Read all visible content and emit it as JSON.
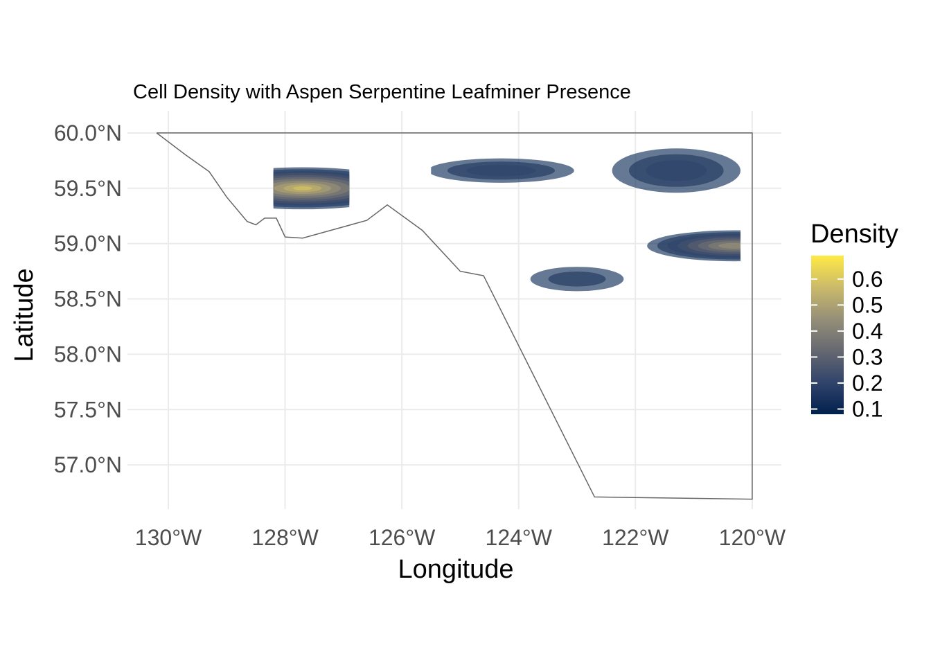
{
  "chart_data": {
    "type": "contour-map",
    "title": "Cell Density with Aspen Serpentine Leafminer Presence",
    "xlabel": "Longitude",
    "ylabel": "Latitude",
    "xlim": [
      -130.7,
      -119.5
    ],
    "ylim": [
      56.6,
      60.2
    ],
    "x_ticks": [
      {
        "value": -130,
        "label": "130°W"
      },
      {
        "value": -128,
        "label": "128°W"
      },
      {
        "value": -126,
        "label": "126°W"
      },
      {
        "value": -124,
        "label": "124°W"
      },
      {
        "value": -122,
        "label": "122°W"
      },
      {
        "value": -120,
        "label": "120°W"
      }
    ],
    "y_ticks": [
      {
        "value": 60.0,
        "label": "60.0°N"
      },
      {
        "value": 59.5,
        "label": "59.5°N"
      },
      {
        "value": 59.0,
        "label": "59.0°N"
      },
      {
        "value": 58.5,
        "label": "58.5°N"
      },
      {
        "value": 58.0,
        "label": "58.0°N"
      },
      {
        "value": 57.5,
        "label": "57.5°N"
      },
      {
        "value": 57.0,
        "label": "57.0°N"
      }
    ],
    "grid": true,
    "boundary": [
      [
        -130.2,
        60.0
      ],
      [
        -129.7,
        59.8
      ],
      [
        -129.3,
        59.65
      ],
      [
        -129.0,
        59.42
      ],
      [
        -128.65,
        59.2
      ],
      [
        -128.5,
        59.17
      ],
      [
        -128.35,
        59.23
      ],
      [
        -128.15,
        59.23
      ],
      [
        -128.0,
        59.06
      ],
      [
        -127.7,
        59.05
      ],
      [
        -126.6,
        59.21
      ],
      [
        -126.25,
        59.35
      ],
      [
        -125.65,
        59.12
      ],
      [
        -125.0,
        58.75
      ],
      [
        -124.6,
        58.71
      ],
      [
        -122.7,
        56.71
      ],
      [
        -120.0,
        56.69
      ],
      [
        -120.0,
        60.0
      ],
      [
        -130.2,
        60.0
      ]
    ],
    "hotspots": [
      {
        "lon": -127.7,
        "lat": 59.5,
        "clip_west": -128.2,
        "clip_east": -126.9,
        "peak": 0.6,
        "outer_rx": 1.8,
        "outer_ry": 0.19
      },
      {
        "lon": -124.3,
        "lat": 59.66,
        "clip_west": -125.5,
        "clip_east": -122.7,
        "peak": 0.24,
        "outer_rx": 1.25,
        "outer_ry": 0.11
      },
      {
        "lon": -121.3,
        "lat": 59.66,
        "clip_west": -122.4,
        "clip_east": -120.1,
        "peak": 0.24,
        "outer_rx": 1.1,
        "outer_ry": 0.2
      },
      {
        "lon": -120.3,
        "lat": 58.98,
        "clip_west": -121.8,
        "clip_east": -120.2,
        "peak": 0.48,
        "outer_rx": 1.5,
        "outer_ry": 0.14
      },
      {
        "lon": -123.0,
        "lat": 58.68,
        "clip_west": -123.8,
        "clip_east": -122.1,
        "peak": 0.18,
        "outer_rx": 0.8,
        "outer_ry": 0.11
      }
    ],
    "legend": {
      "title": "Density",
      "position": "right",
      "min": 0.08,
      "max": 0.69,
      "ticks": [
        {
          "value": 0.6,
          "label": "0.6"
        },
        {
          "value": 0.5,
          "label": "0.5"
        },
        {
          "value": 0.4,
          "label": "0.4"
        },
        {
          "value": 0.3,
          "label": "0.3"
        },
        {
          "value": 0.2,
          "label": "0.2"
        },
        {
          "value": 0.1,
          "label": "0.1"
        }
      ],
      "colors": [
        "#00204d",
        "#31446b",
        "#666870",
        "#958f78",
        "#cbba69",
        "#ffea46"
      ]
    },
    "boundary_color": "#666666"
  }
}
